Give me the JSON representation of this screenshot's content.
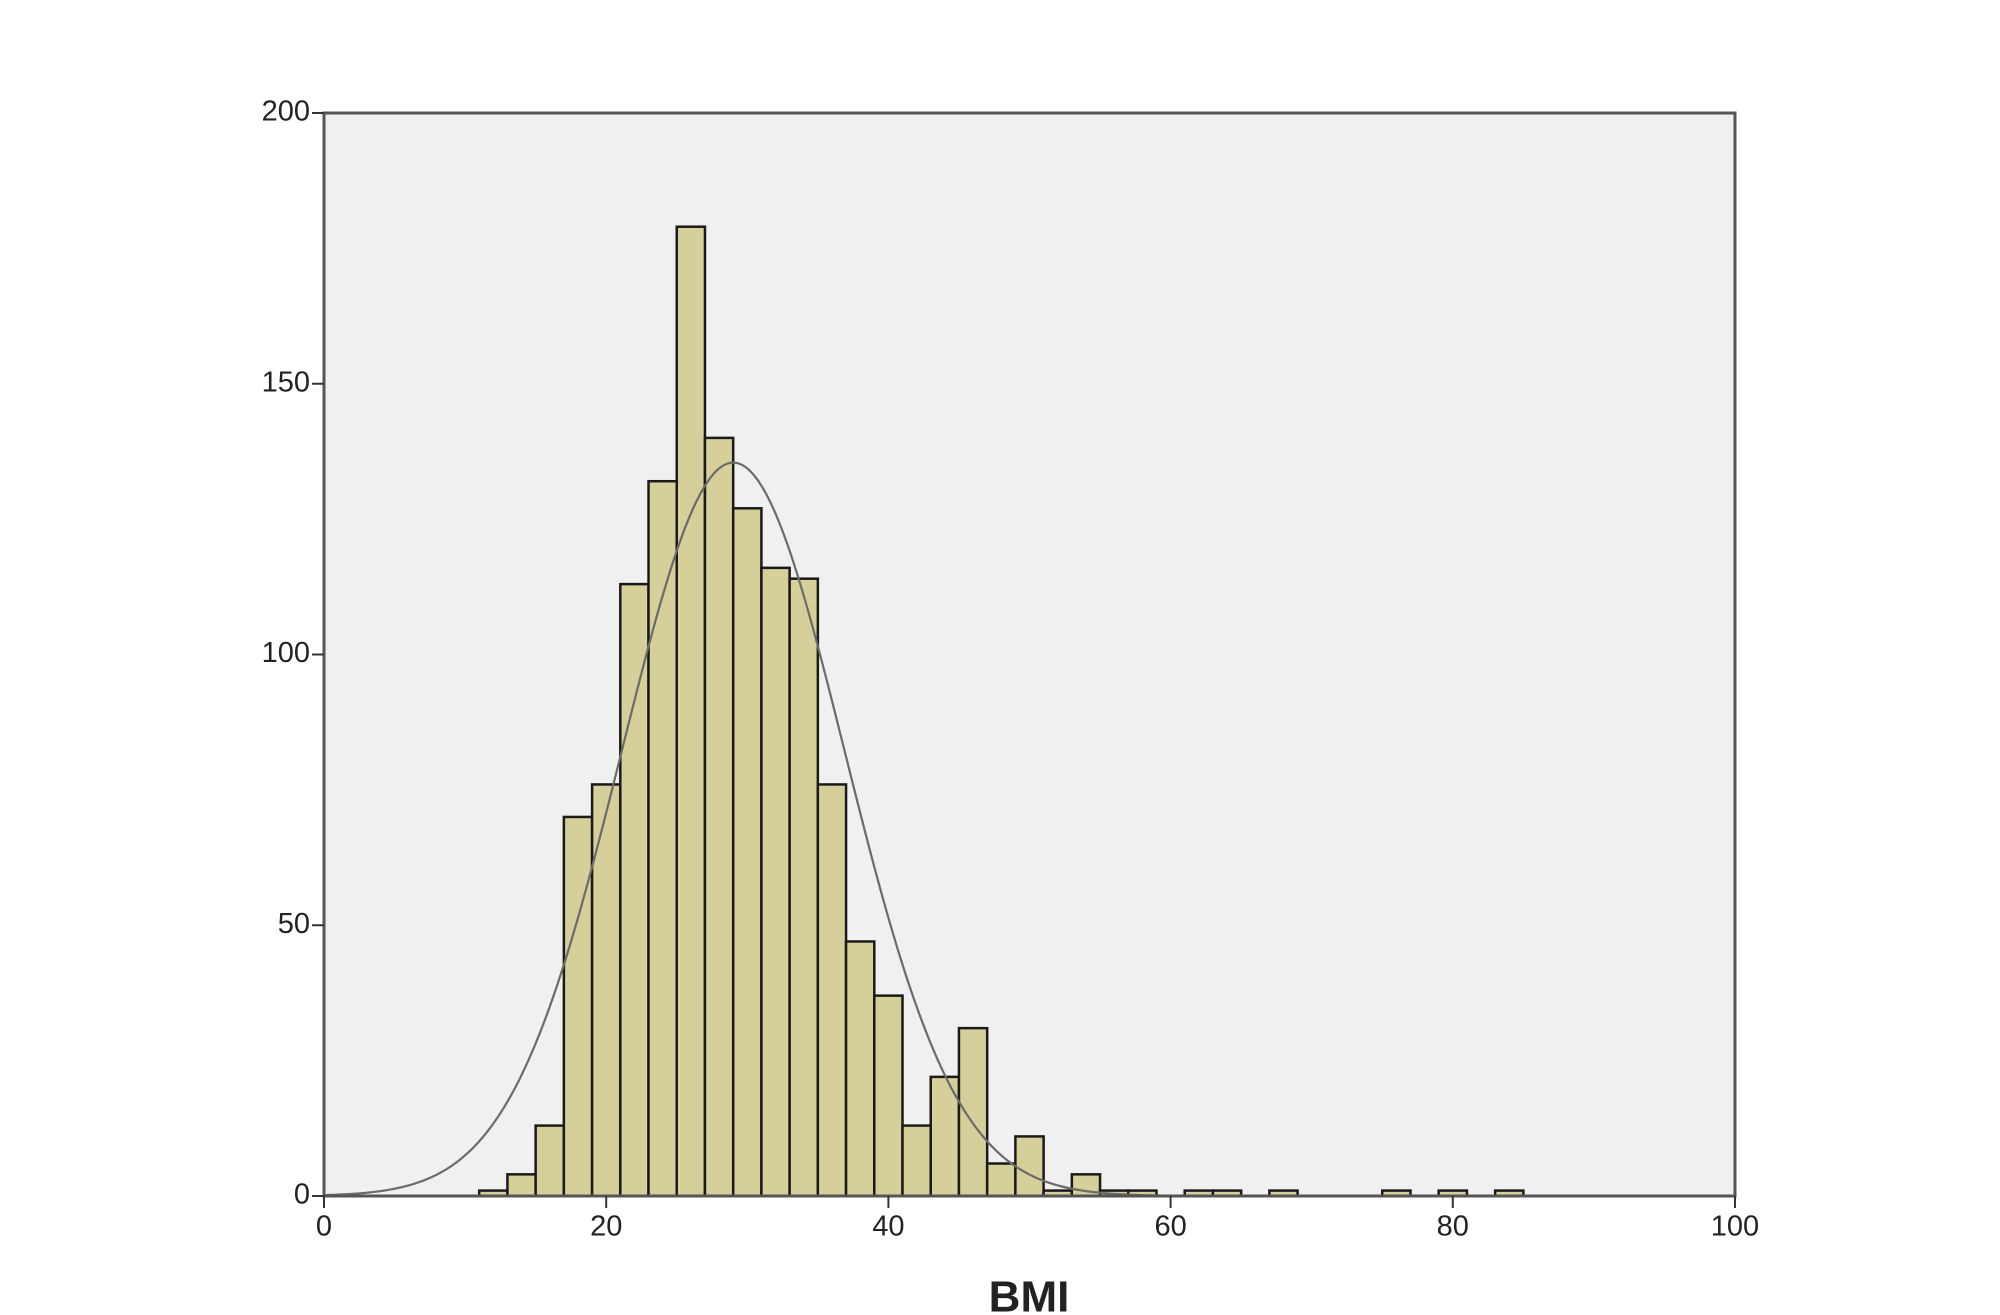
{
  "chart_data": {
    "type": "histogram",
    "x_label": "BMI",
    "bins": [
      11,
      13,
      15,
      17,
      19,
      21,
      23,
      25,
      27,
      29,
      31,
      33,
      35,
      37,
      39,
      41,
      43,
      45,
      47,
      49,
      51,
      53,
      55,
      57,
      59,
      61,
      63,
      65,
      67,
      69,
      71,
      73,
      75,
      77,
      79,
      81,
      83,
      85
    ],
    "counts": [
      1,
      4,
      13,
      70,
      76,
      113,
      132,
      179,
      140,
      127,
      116,
      114,
      76,
      47,
      37,
      13,
      22,
      31,
      6,
      11,
      1,
      4,
      1,
      1,
      0,
      1,
      1,
      0,
      1,
      0,
      0,
      0,
      1,
      0,
      1,
      0,
      1
    ],
    "color": "#d6cf9a",
    "edge_color": "#1a1a1a",
    "curve": {
      "mean": 29,
      "sd": 7.9,
      "color": "#6b6b6b"
    },
    "xlim": [
      0,
      100
    ],
    "xticks": [
      0,
      20,
      40,
      60,
      80,
      100
    ],
    "ylim": [
      0,
      200
    ],
    "yticks": [
      0,
      50,
      100,
      150,
      200
    ],
    "background": "#f0f0f0"
  }
}
